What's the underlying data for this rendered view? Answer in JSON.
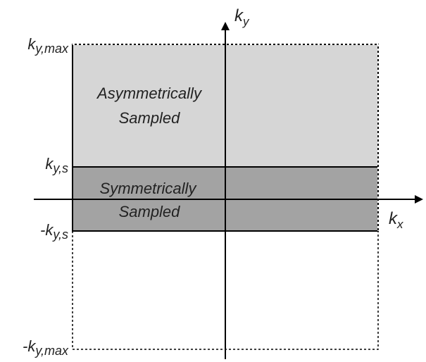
{
  "colors": {
    "asymmetric_fill": "#d6d6d6",
    "symmetric_fill": "#a3a3a3",
    "stroke": "#000000",
    "text": "#222222"
  },
  "axes": {
    "x_label": "k",
    "x_sub": "x",
    "y_label": "k",
    "y_sub": "y"
  },
  "ticks": {
    "ky_max": {
      "prefix": "",
      "main": "k",
      "sub": "y,max"
    },
    "ky_s": {
      "prefix": "",
      "main": "k",
      "sub": "y,s"
    },
    "neg_ky_s": {
      "prefix": "-",
      "main": "k",
      "sub": "y,s"
    },
    "neg_ky_max": {
      "prefix": "-",
      "main": "k",
      "sub": "y,max"
    }
  },
  "regions": {
    "asymmetric": {
      "line1": "Asymmetrically",
      "line2": "Sampled"
    },
    "symmetric": {
      "line1": "Symmetrically",
      "line2": "Sampled"
    }
  }
}
